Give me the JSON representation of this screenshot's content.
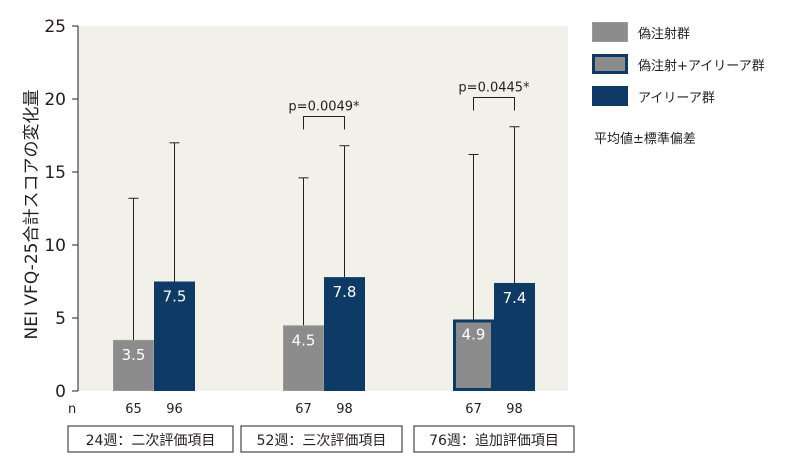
{
  "chart_data": {
    "type": "bar",
    "ylabel": "NEI VFQ-25合計スコアの変化量",
    "ylim": [
      0,
      25
    ],
    "yticks": [
      0,
      5,
      10,
      15,
      20,
      25
    ],
    "n_label": "n",
    "colors": {
      "sham": "#8c8c8c",
      "sham_border": "#9a9a9a",
      "crossover": "#8c8c8c",
      "crossover_border": "#0e3a66",
      "eylea": "#0e3a66"
    },
    "groups": [
      {
        "label": "24週：二次評価項目",
        "bars": [
          {
            "series": "sham",
            "value": 3.5,
            "label": "3.5",
            "err_upper": 13.2,
            "n": "65"
          },
          {
            "series": "eylea",
            "value": 7.5,
            "label": "7.5",
            "err_upper": 17.0,
            "n": "96"
          }
        ],
        "pvalue": ""
      },
      {
        "label": "52週：三次評価項目",
        "bars": [
          {
            "series": "sham",
            "value": 4.5,
            "label": "4.5",
            "err_upper": 14.6,
            "n": "67"
          },
          {
            "series": "eylea",
            "value": 7.8,
            "label": "7.8",
            "err_upper": 16.8,
            "n": "98"
          }
        ],
        "pvalue": "p=0.0049*"
      },
      {
        "label": "76週：追加評価項目",
        "bars": [
          {
            "series": "crossover",
            "value": 4.9,
            "label": "4.9",
            "err_upper": 16.2,
            "n": "67"
          },
          {
            "series": "eylea",
            "value": 7.4,
            "label": "7.4",
            "err_upper": 18.1,
            "n": "98"
          }
        ],
        "pvalue": "p=0.0445*"
      }
    ],
    "legend": [
      {
        "key": "sham",
        "name": "偽注射群"
      },
      {
        "key": "crossover",
        "name": "偽注射+アイリーア群"
      },
      {
        "key": "eylea",
        "name": "アイリーア群"
      }
    ],
    "note": "平均値±標準偏差"
  }
}
